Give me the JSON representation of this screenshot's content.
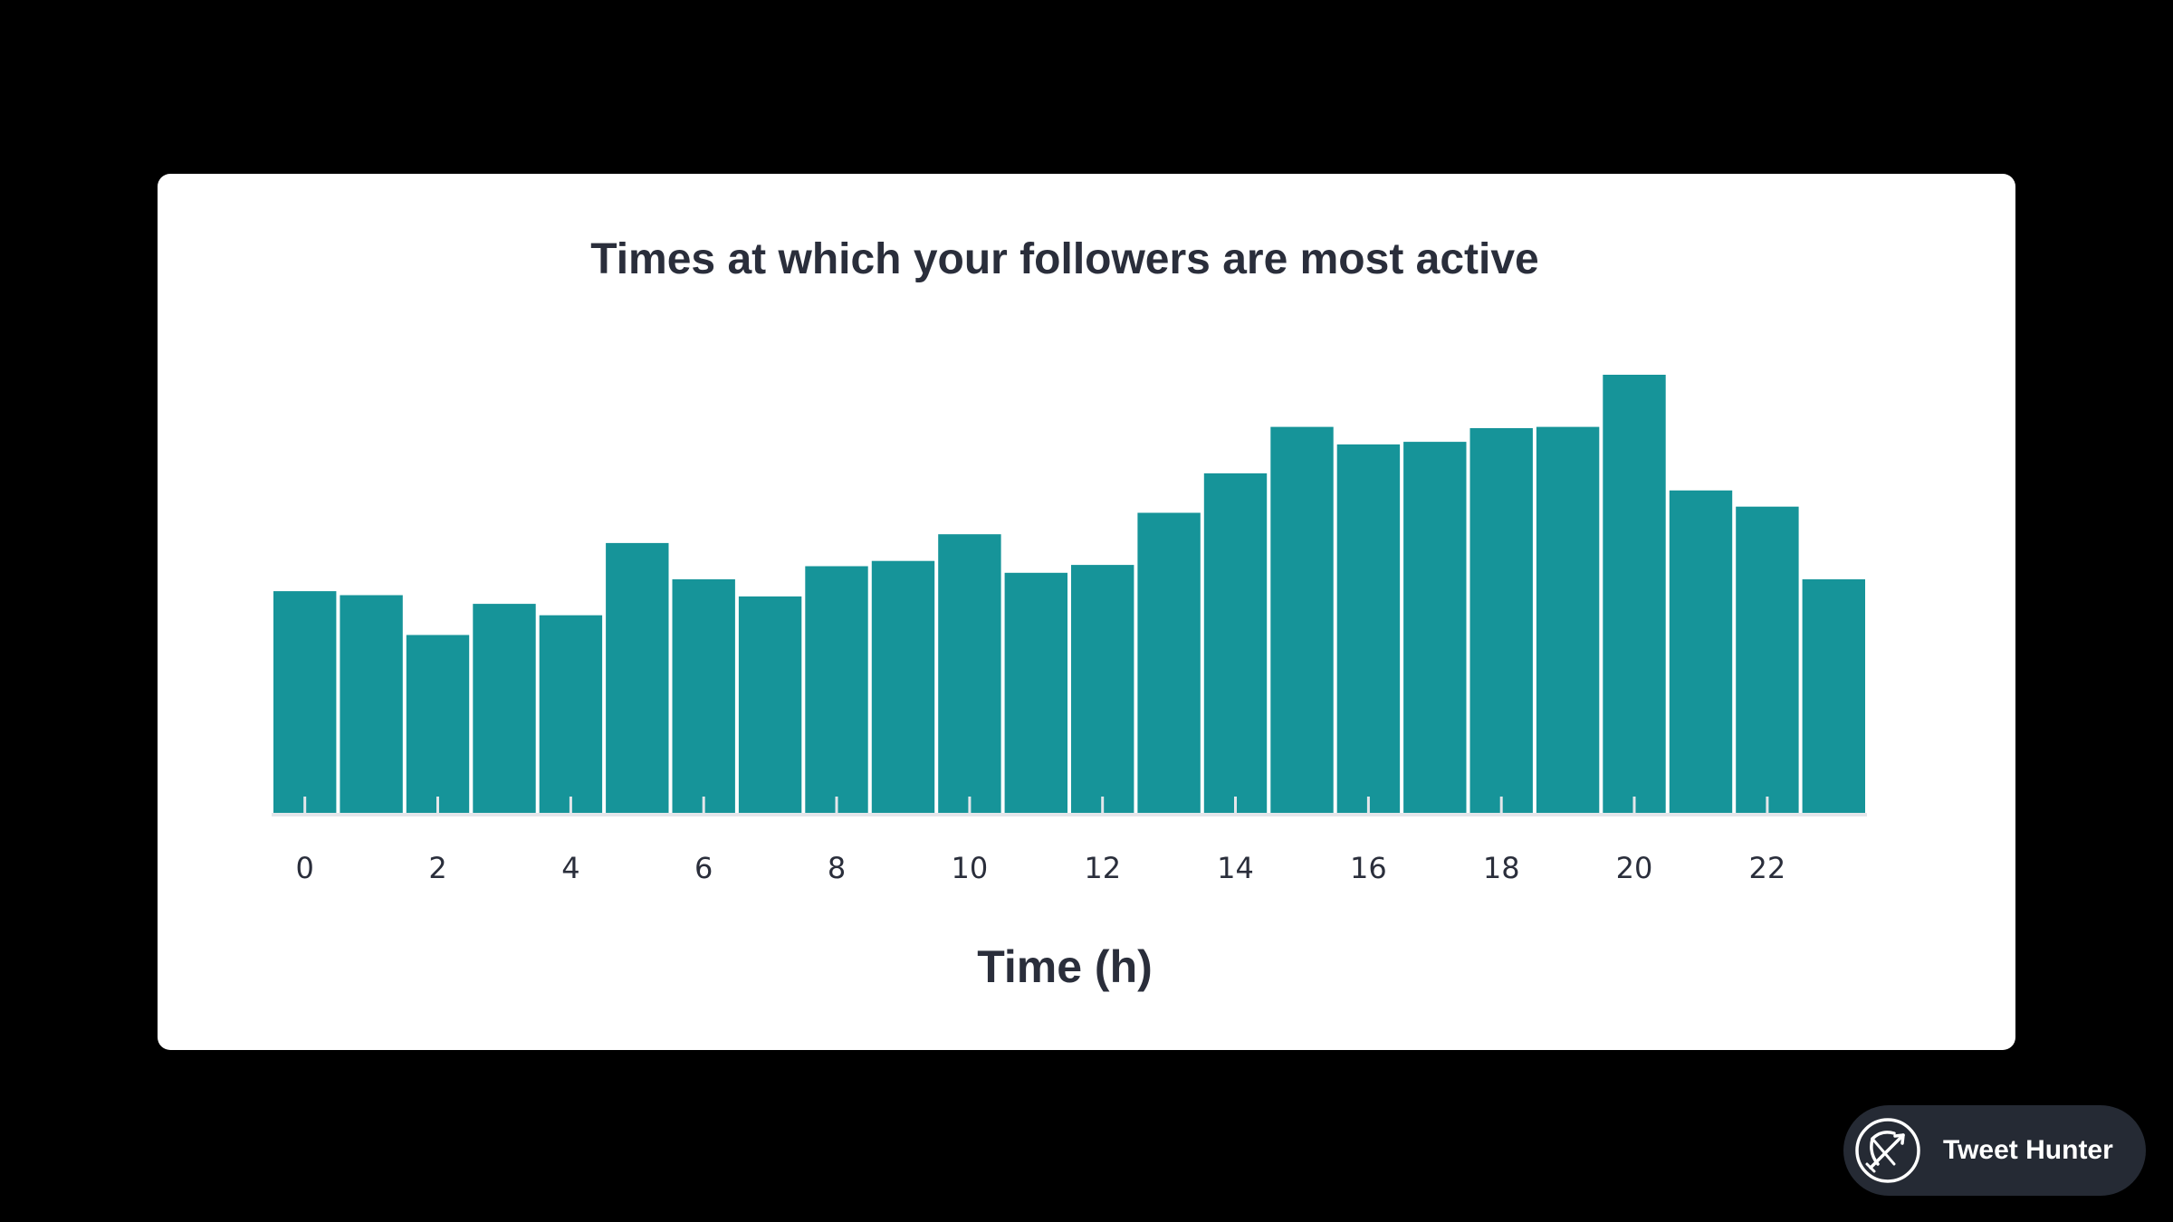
{
  "colors": {
    "background": "#000000",
    "card": "#ffffff",
    "bar": "#169499",
    "text": "#2a2e3b",
    "axis": "#e4e6ea",
    "badge": "#252a34"
  },
  "chart_data": {
    "type": "bar",
    "title": "Times at which your followers are most active",
    "xlabel": "Time (h)",
    "ylabel": "",
    "x_tick_labels": [
      "0",
      "2",
      "4",
      "6",
      "8",
      "10",
      "12",
      "14",
      "16",
      "18",
      "20",
      "22"
    ],
    "categories": [
      0,
      1,
      2,
      3,
      4,
      5,
      6,
      7,
      8,
      9,
      10,
      11,
      12,
      13,
      14,
      15,
      16,
      17,
      18,
      19,
      20,
      21,
      22,
      23
    ],
    "values": [
      50.6,
      49.7,
      40.6,
      47.7,
      45.1,
      61.6,
      53.3,
      49.4,
      56.3,
      57.5,
      63.6,
      54.8,
      56.6,
      68.5,
      77.5,
      88.1,
      84.1,
      84.7,
      87.8,
      88.1,
      100,
      73.6,
      69.9,
      53.3
    ],
    "ylim": [
      0,
      100
    ],
    "grid": false,
    "y_axis_shown": false
  },
  "badge": {
    "label": "Tweet Hunter",
    "icon": "bow-and-arrow-icon"
  }
}
